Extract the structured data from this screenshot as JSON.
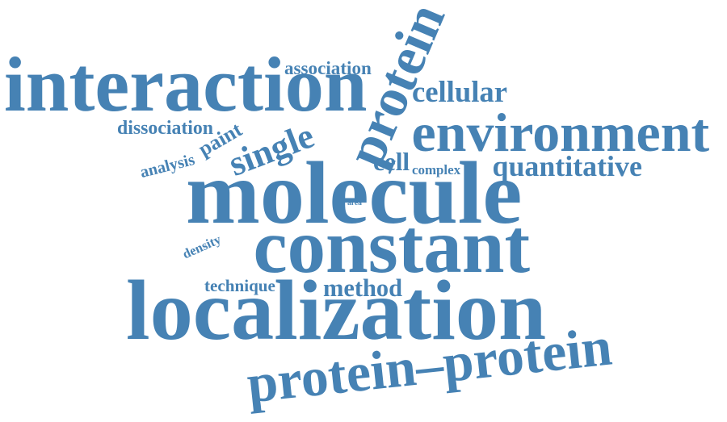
{
  "cloud": {
    "color": "#4682b4",
    "background": "#ffffff",
    "words": [
      {
        "key": "interaction",
        "text": "interaction"
      },
      {
        "key": "environment",
        "text": "environment"
      },
      {
        "key": "molecule",
        "text": "molecule"
      },
      {
        "key": "constant",
        "text": "constant"
      },
      {
        "key": "localization",
        "text": "localization"
      },
      {
        "key": "protein_protein",
        "text": "protein–protein"
      },
      {
        "key": "protein",
        "text": "protein"
      },
      {
        "key": "single",
        "text": "single"
      },
      {
        "key": "cellular",
        "text": "cellular"
      },
      {
        "key": "quantitative",
        "text": "quantitative"
      },
      {
        "key": "association",
        "text": "association"
      },
      {
        "key": "dissociation",
        "text": "dissociation"
      },
      {
        "key": "paint",
        "text": "paint"
      },
      {
        "key": "analysis",
        "text": "analysis"
      },
      {
        "key": "cell",
        "text": "cell"
      },
      {
        "key": "complex",
        "text": "complex"
      },
      {
        "key": "area",
        "text": "area"
      },
      {
        "key": "density",
        "text": "density"
      },
      {
        "key": "technique",
        "text": "technique"
      },
      {
        "key": "method",
        "text": "method"
      }
    ]
  }
}
